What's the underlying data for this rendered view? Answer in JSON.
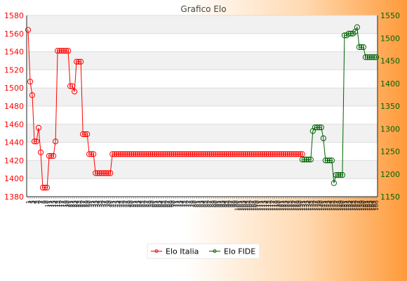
{
  "chart_data": {
    "type": "line",
    "title": "Grafico Elo",
    "xlabel": "",
    "ylabel_left": "",
    "ylabel_right": "",
    "grid": true,
    "legend_position": "bottom",
    "left_axis": {
      "ylim": [
        1380,
        1580
      ],
      "ticks": [
        1380,
        1400,
        1420,
        1440,
        1460,
        1480,
        1500,
        1520,
        1540,
        1560,
        1580
      ]
    },
    "right_axis": {
      "ylim": [
        1150,
        1550
      ],
      "ticks": [
        1150,
        1200,
        1250,
        1300,
        1350,
        1400,
        1450,
        1500,
        1550
      ]
    },
    "x_count": 130,
    "series": [
      {
        "name": "Elo Italia",
        "axis": "left",
        "color": "#ff0000",
        "x": [
          0,
          1,
          2,
          3,
          4,
          5,
          6,
          7,
          8,
          9,
          10,
          11,
          12,
          13,
          14,
          15,
          16,
          17,
          18,
          19,
          20,
          21,
          22,
          23,
          24,
          25,
          26,
          27,
          28,
          29,
          30,
          31,
          32,
          33,
          34,
          35,
          36,
          37,
          38,
          39,
          40,
          41,
          42,
          43,
          44,
          45,
          46,
          47,
          48,
          49,
          50,
          51,
          52,
          53,
          54,
          55,
          56,
          57,
          58,
          59,
          60,
          61,
          62,
          63,
          64,
          65,
          66,
          67,
          68,
          69,
          70,
          71,
          72,
          73,
          74,
          75,
          76,
          77,
          78,
          79,
          80,
          81,
          82,
          83,
          84,
          85,
          86,
          87,
          88,
          89,
          90,
          91,
          92,
          93,
          94,
          95,
          96,
          97,
          98,
          99,
          100,
          101,
          102,
          103,
          104,
          105,
          106,
          107,
          108,
          109,
          110,
          111,
          112,
          113,
          114,
          115,
          116,
          117,
          118,
          119,
          120,
          121,
          122,
          123,
          124,
          125,
          126,
          127,
          128,
          129,
          130
        ],
        "values": [
          1564,
          1507,
          1492,
          1441,
          1441,
          1456,
          1429,
          1390,
          1390,
          1390,
          1425,
          1425,
          1425,
          1441,
          1541,
          1541,
          1541,
          1541,
          1541,
          1541,
          1502,
          1502,
          1496,
          1529,
          1529,
          1529,
          1449,
          1449,
          1449,
          1427,
          1427,
          1427,
          1406,
          1406,
          1406,
          1406,
          1406,
          1406,
          1406,
          1406,
          1427,
          1427,
          1427,
          1427,
          1427,
          1427,
          1427,
          1427,
          1427,
          1427,
          1427,
          1427,
          1427,
          1427,
          1427,
          1427,
          1427,
          1427,
          1427,
          1427,
          1427,
          1427,
          1427,
          1427,
          1427,
          1427,
          1427,
          1427,
          1427,
          1427,
          1427,
          1427,
          1427,
          1427,
          1427,
          1427,
          1427,
          1427,
          1427,
          1427,
          1427,
          1427,
          1427,
          1427,
          1427,
          1427,
          1427,
          1427,
          1427,
          1427,
          1427,
          1427,
          1427,
          1427,
          1427,
          1427,
          1427,
          1427,
          1427,
          1427,
          1427,
          1427,
          1427,
          1427,
          1427,
          1427,
          1427,
          1427,
          1427,
          1427,
          1427,
          1427,
          1427,
          1427,
          1427,
          1427,
          1427,
          1427,
          1427,
          1427,
          1427,
          1427,
          1427,
          1427,
          1427,
          1427,
          1427,
          1427,
          1427,
          1427,
          1427
        ]
      },
      {
        "name": "Elo FIDE",
        "axis": "right",
        "color": "#006400",
        "x": [
          130,
          131,
          132,
          133,
          134,
          135,
          136,
          137,
          138,
          139,
          140,
          141,
          142,
          143,
          144,
          145,
          146,
          147,
          148,
          149,
          150,
          151,
          152,
          153,
          154,
          155,
          156,
          157,
          158,
          159,
          160,
          161,
          162,
          163,
          164,
          165
        ],
        "values": [
          1232,
          1232,
          1232,
          1232,
          1232,
          1295,
          1303,
          1303,
          1303,
          1303,
          1279,
          1230,
          1230,
          1230,
          1230,
          1180,
          1198,
          1198,
          1198,
          1198,
          1506,
          1506,
          1510,
          1510,
          1510,
          1514,
          1524,
          1480,
          1480,
          1480,
          1458,
          1458,
          1458,
          1458,
          1458,
          1458
        ]
      }
    ]
  },
  "x_axis_labels": [
    "1",
    "2",
    "3",
    "4",
    "5",
    "6",
    "7",
    "8",
    "9",
    "10",
    "11",
    "12",
    "13",
    "14",
    "15",
    "16",
    "17",
    "18",
    "19",
    "20",
    "21",
    "22",
    "23",
    "24",
    "25",
    "26",
    "27",
    "28",
    "29",
    "30",
    "31",
    "32",
    "33",
    "34",
    "35",
    "36",
    "37",
    "38",
    "39",
    "40",
    "41",
    "42",
    "43",
    "44",
    "45",
    "46",
    "47",
    "48",
    "49",
    "50",
    "51",
    "52",
    "53",
    "54",
    "55",
    "56",
    "57",
    "58",
    "59",
    "60",
    "61",
    "62",
    "63",
    "64",
    "65",
    "66",
    "67",
    "68",
    "69",
    "70",
    "71",
    "72",
    "73",
    "74",
    "75",
    "76",
    "77",
    "78",
    "79",
    "80",
    "81",
    "82",
    "83",
    "84",
    "85",
    "86",
    "87",
    "88",
    "89",
    "90",
    "91",
    "92",
    "93",
    "94",
    "95",
    "96",
    "97",
    "98",
    "99",
    "100",
    "101",
    "102",
    "103",
    "104",
    "105",
    "106",
    "107",
    "108",
    "109",
    "110",
    "111",
    "112",
    "113",
    "114",
    "115",
    "116",
    "117",
    "118",
    "119",
    "120",
    "121",
    "122",
    "123",
    "124",
    "125",
    "126",
    "127",
    "128",
    "129",
    "130",
    "131",
    "132",
    "133",
    "134",
    "135",
    "136",
    "137",
    "138",
    "139",
    "140",
    "141",
    "142",
    "143",
    "144",
    "145",
    "146",
    "147",
    "148",
    "149",
    "150",
    "151",
    "152",
    "153",
    "154",
    "155",
    "156",
    "157",
    "158",
    "159",
    "160",
    "161",
    "162",
    "163",
    "164",
    "165",
    "166"
  ],
  "colors": {
    "left_axis": "#ff0000",
    "right_axis": "#006400",
    "grid_band": "#f1f1f1"
  }
}
